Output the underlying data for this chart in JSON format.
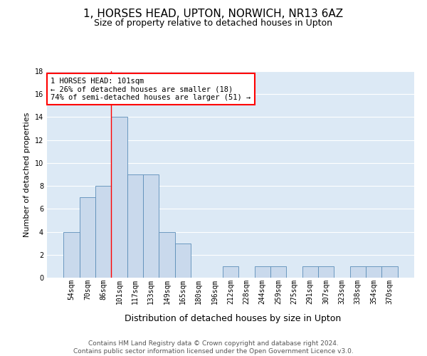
{
  "title": "1, HORSES HEAD, UPTON, NORWICH, NR13 6AZ",
  "subtitle": "Size of property relative to detached houses in Upton",
  "xlabel": "Distribution of detached houses by size in Upton",
  "ylabel": "Number of detached properties",
  "categories": [
    "54sqm",
    "70sqm",
    "86sqm",
    "101sqm",
    "117sqm",
    "133sqm",
    "149sqm",
    "165sqm",
    "180sqm",
    "196sqm",
    "212sqm",
    "228sqm",
    "244sqm",
    "259sqm",
    "275sqm",
    "291sqm",
    "307sqm",
    "323sqm",
    "338sqm",
    "354sqm",
    "370sqm"
  ],
  "values": [
    4,
    7,
    8,
    14,
    9,
    9,
    4,
    3,
    0,
    0,
    1,
    0,
    1,
    1,
    0,
    1,
    1,
    0,
    1,
    1,
    1
  ],
  "bar_color": "#c9d9ec",
  "bar_edge_color": "#5b8db8",
  "red_line_index": 3,
  "annotation_text": "1 HORSES HEAD: 101sqm\n← 26% of detached houses are smaller (18)\n74% of semi-detached houses are larger (51) →",
  "annotation_box_color": "white",
  "annotation_box_edge_color": "red",
  "ylim": [
    0,
    18
  ],
  "yticks": [
    0,
    2,
    4,
    6,
    8,
    10,
    12,
    14,
    16,
    18
  ],
  "footnote": "Contains HM Land Registry data © Crown copyright and database right 2024.\nContains public sector information licensed under the Open Government Licence v3.0.",
  "bg_color": "#dce9f5",
  "grid_color": "white",
  "title_fontsize": 11,
  "subtitle_fontsize": 9,
  "xlabel_fontsize": 9,
  "ylabel_fontsize": 8,
  "tick_fontsize": 7,
  "annotation_fontsize": 7.5,
  "footnote_fontsize": 6.5
}
